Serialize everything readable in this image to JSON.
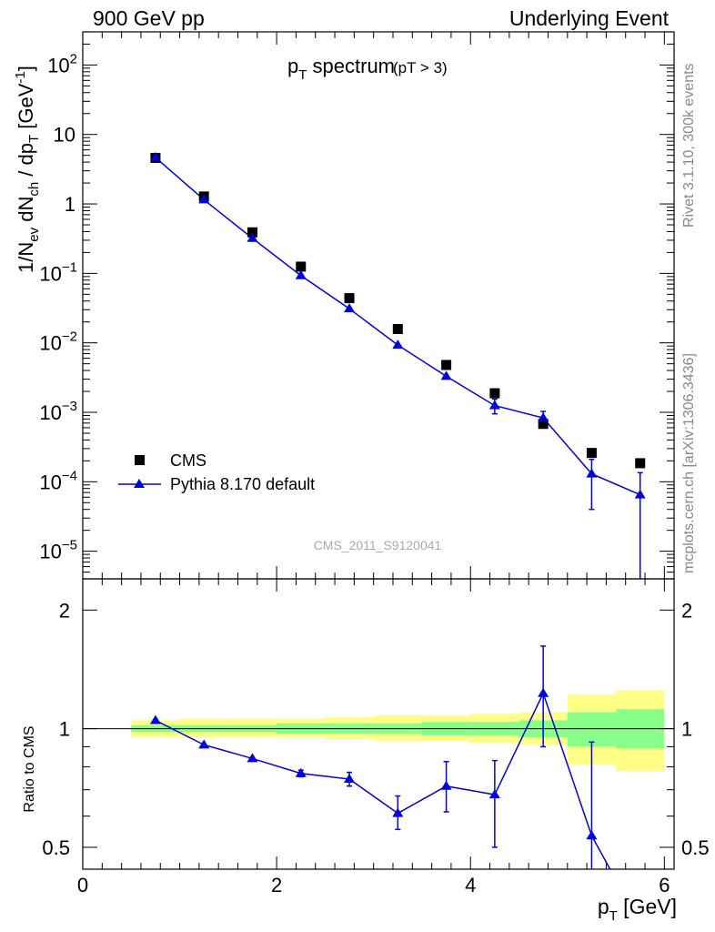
{
  "header": {
    "left": "900 GeV pp",
    "right": "Underlying Event"
  },
  "side_text": {
    "rivet": "Rivet 3.1.10,  300k events",
    "mcplots": "mcplots.cern.ch [arXiv:1306.3436]"
  },
  "watermark": "CMS_2011_S9120041",
  "chart_data": [
    {
      "type": "scatter",
      "title_main": "p",
      "title_sub": "T",
      "title_rest": " spectrum",
      "title_cut": "(pT >  3)",
      "ylabel": "1/N_ev dN_ch / dp_T [GeV^-1]",
      "ylabel_parts": {
        "a": "1/N",
        "a_sub": "ev",
        "b": " dN",
        "b_sub": "ch",
        "c": " / dp",
        "c_sub": "T",
        "d": " [GeV",
        "d_sup": "-1",
        "e": "]"
      },
      "yscale": "log",
      "ylim": [
        4e-06,
        300
      ],
      "xlim": [
        0,
        6.1
      ],
      "ytick_labels": [
        {
          "value": 100,
          "base": "10",
          "exp": "2"
        },
        {
          "value": 10,
          "base": "10",
          "exp": ""
        },
        {
          "value": 1,
          "base": "1",
          "exp": ""
        },
        {
          "value": 0.1,
          "base": "10",
          "exp": "−1"
        },
        {
          "value": 0.01,
          "base": "10",
          "exp": "−2"
        },
        {
          "value": 0.001,
          "base": "10",
          "exp": "−3"
        },
        {
          "value": 0.0001,
          "base": "10",
          "exp": "−4"
        },
        {
          "value": 1e-05,
          "base": "10",
          "exp": "−5"
        }
      ],
      "legend_position": "lower-left",
      "series": [
        {
          "name": "CMS",
          "color": "#000000",
          "marker": "square",
          "x": [
            0.75,
            1.25,
            1.75,
            2.25,
            2.75,
            3.25,
            3.75,
            4.25,
            4.75,
            5.25,
            5.75
          ],
          "y": [
            4.6,
            1.28,
            0.39,
            0.125,
            0.044,
            0.0158,
            0.0048,
            0.00188,
            0.00068,
            0.00026,
            0.000185
          ]
        },
        {
          "name": "Pythia 8.170 default",
          "color": "#0000dd",
          "marker": "triangle",
          "x": [
            0.75,
            1.25,
            1.75,
            2.25,
            2.75,
            3.25,
            3.75,
            4.25,
            4.75,
            5.25,
            5.75
          ],
          "y": [
            4.65,
            1.15,
            0.32,
            0.093,
            0.031,
            0.0093,
            0.0033,
            0.00125,
            0.00083,
            0.00013,
            6.5e-05
          ],
          "err_low": [
            0,
            0,
            0,
            0,
            0,
            0,
            0,
            0.0003,
            0.0002,
            9e-05,
            6.5e-05
          ],
          "err_high": [
            0,
            0,
            0,
            0,
            0,
            0,
            0,
            0.0003,
            0.0002,
            8e-05,
            7e-05
          ]
        }
      ]
    },
    {
      "type": "line",
      "ylabel": "Ratio to CMS",
      "xlabel_main": "p",
      "xlabel_sub": "T",
      "xlabel_rest": " [GeV]",
      "yscale": "log",
      "ylim": [
        0.44,
        2.4
      ],
      "xlim": [
        0,
        6.1
      ],
      "ytick_labels": [
        {
          "value": 2,
          "label": "2"
        },
        {
          "value": 1,
          "label": "1"
        },
        {
          "value": 0.5,
          "label": "0.5"
        }
      ],
      "xtick_labels": [
        {
          "value": 0,
          "label": "0"
        },
        {
          "value": 2,
          "label": "2"
        },
        {
          "value": 4,
          "label": "4"
        },
        {
          "value": 6,
          "label": "6"
        }
      ],
      "bands": {
        "edges": [
          0.5,
          1.0,
          1.5,
          2.0,
          2.5,
          3.0,
          3.5,
          4.0,
          4.5,
          5.0,
          5.5,
          6.0
        ],
        "yellow_color": "#ffff88",
        "green_color": "#88ff88",
        "yellow_low": [
          0.95,
          0.95,
          0.95,
          0.95,
          0.94,
          0.93,
          0.93,
          0.92,
          0.91,
          0.81,
          0.78
        ],
        "yellow_high": [
          1.05,
          1.06,
          1.06,
          1.06,
          1.07,
          1.08,
          1.08,
          1.09,
          1.1,
          1.22,
          1.25
        ],
        "green_low": [
          0.98,
          0.98,
          0.98,
          0.97,
          0.97,
          0.97,
          0.96,
          0.96,
          0.95,
          0.9,
          0.89
        ],
        "green_high": [
          1.02,
          1.02,
          1.02,
          1.03,
          1.03,
          1.03,
          1.04,
          1.04,
          1.05,
          1.1,
          1.12
        ]
      },
      "series": [
        {
          "name": "Pythia 8.170 default",
          "color": "#0000dd",
          "x": [
            0.75,
            1.25,
            1.75,
            2.25,
            2.75,
            3.25,
            3.75,
            4.25,
            4.75,
            5.25,
            5.75
          ],
          "y": [
            1.05,
            0.91,
            0.84,
            0.77,
            0.745,
            0.61,
            0.715,
            0.68,
            1.23,
            0.535,
            0.32
          ],
          "err_low": [
            0,
            0,
            0,
            0.015,
            0.03,
            0.055,
            0.1,
            0.18,
            0.33,
            0.2,
            0
          ],
          "err_high": [
            0,
            0,
            0,
            0.015,
            0.03,
            0.065,
            0.11,
            0.15,
            0.39,
            0.39,
            0
          ]
        }
      ]
    }
  ]
}
